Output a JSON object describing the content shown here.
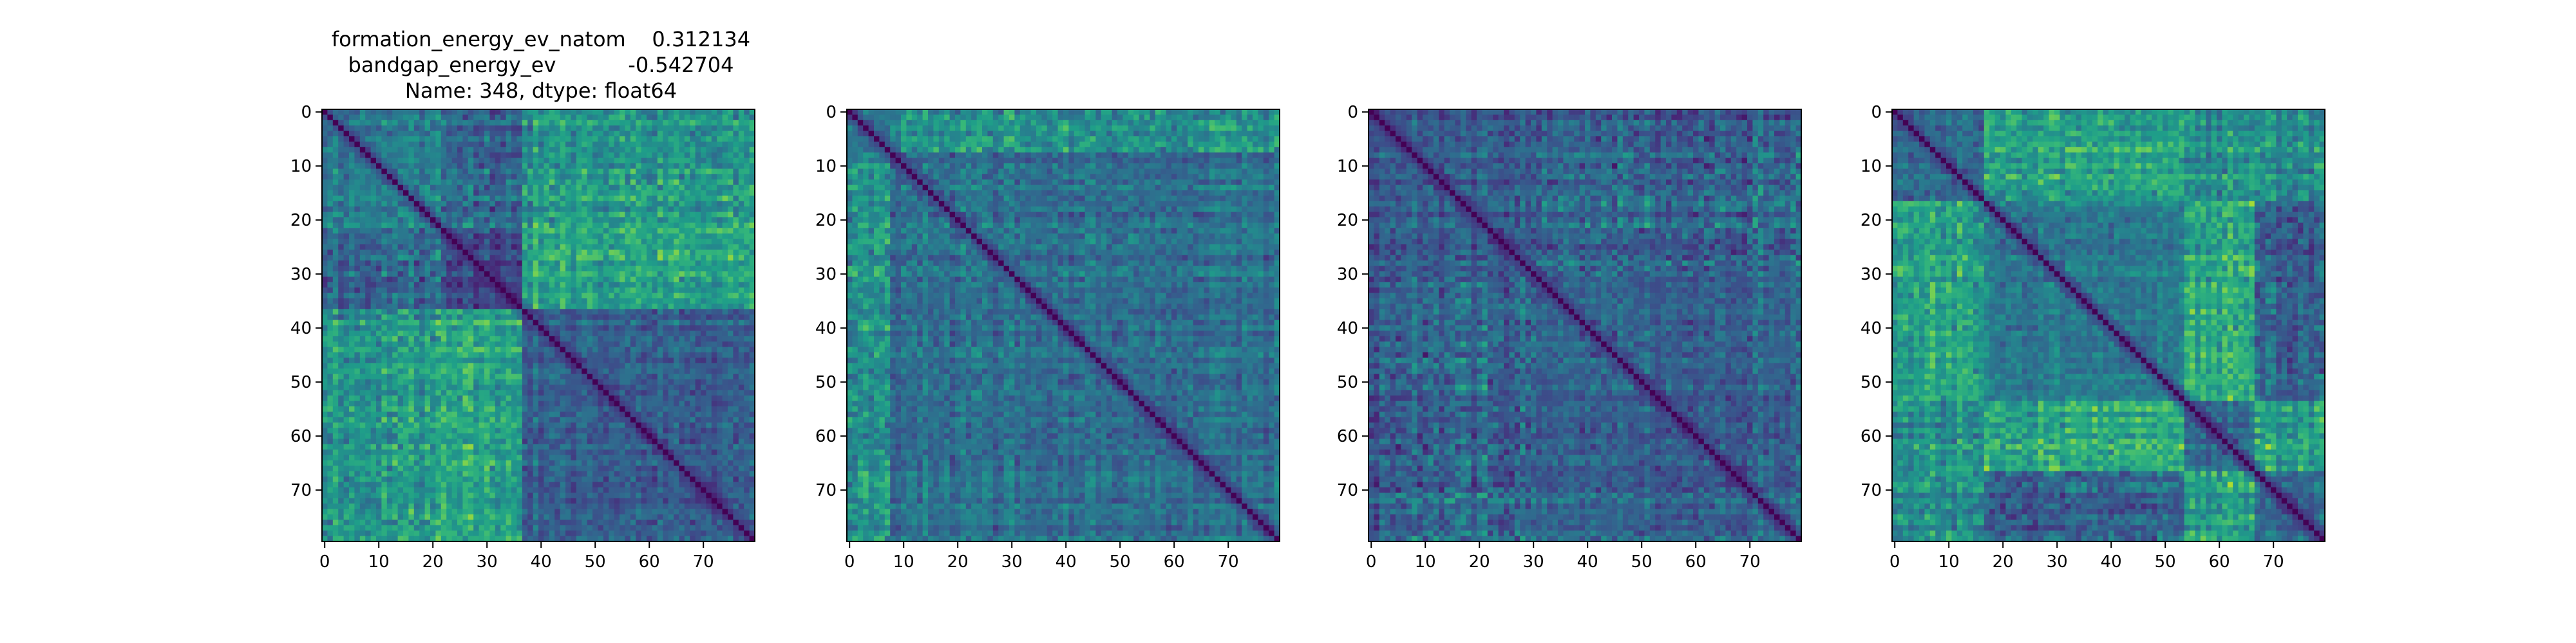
{
  "figure": {
    "title_lines": [
      "formation_energy_ev_natom    0.312134",
      "bandgap_energy_ev           -0.542704",
      "Name: 348, dtype: float64"
    ]
  },
  "chart_data": [
    {
      "type": "heatmap",
      "title": "",
      "size": 80,
      "colormap": "viridis",
      "diagonal_value": 0,
      "xlim": [
        -0.5,
        79.5
      ],
      "ylim": [
        79.5,
        -0.5
      ],
      "xticks": [
        0,
        10,
        20,
        30,
        40,
        50,
        60,
        70
      ],
      "yticks": [
        0,
        10,
        20,
        30,
        40,
        50,
        60,
        70
      ],
      "xtick_labels": [
        "0",
        "10",
        "20",
        "30",
        "40",
        "50",
        "60",
        "70"
      ],
      "ytick_labels": [
        "0",
        "10",
        "20",
        "30",
        "40",
        "50",
        "60",
        "70"
      ],
      "block_boundaries": [
        0,
        22,
        37,
        80
      ],
      "pattern_seed": 11
    },
    {
      "type": "heatmap",
      "title": "",
      "size": 80,
      "colormap": "viridis",
      "diagonal_value": 0,
      "xlim": [
        -0.5,
        79.5
      ],
      "ylim": [
        79.5,
        -0.5
      ],
      "xticks": [
        0,
        10,
        20,
        30,
        40,
        50,
        60,
        70
      ],
      "yticks": [
        0,
        10,
        20,
        30,
        40,
        50,
        60,
        70
      ],
      "xtick_labels": [
        "0",
        "10",
        "20",
        "30",
        "40",
        "50",
        "60",
        "70"
      ],
      "ytick_labels": [
        "0",
        "10",
        "20",
        "30",
        "40",
        "50",
        "60",
        "70"
      ],
      "block_boundaries": [
        0,
        8,
        80
      ],
      "pattern_seed": 29
    },
    {
      "type": "heatmap",
      "title": "",
      "size": 80,
      "colormap": "viridis",
      "diagonal_value": 0,
      "xlim": [
        -0.5,
        79.5
      ],
      "ylim": [
        79.5,
        -0.5
      ],
      "xticks": [
        0,
        10,
        20,
        30,
        40,
        50,
        60,
        70
      ],
      "yticks": [
        0,
        10,
        20,
        30,
        40,
        50,
        60,
        70
      ],
      "xtick_labels": [
        "0",
        "10",
        "20",
        "30",
        "40",
        "50",
        "60",
        "70"
      ],
      "ytick_labels": [
        "0",
        "10",
        "20",
        "30",
        "40",
        "50",
        "60",
        "70"
      ],
      "block_boundaries": [
        0,
        31,
        80
      ],
      "pattern_seed": 47
    },
    {
      "type": "heatmap",
      "title": "",
      "size": 80,
      "colormap": "viridis",
      "diagonal_value": 0,
      "xlim": [
        -0.5,
        79.5
      ],
      "ylim": [
        79.5,
        -0.5
      ],
      "xticks": [
        0,
        10,
        20,
        30,
        40,
        50,
        60,
        70
      ],
      "yticks": [
        0,
        10,
        20,
        30,
        40,
        50,
        60,
        70
      ],
      "xtick_labels": [
        "0",
        "10",
        "20",
        "30",
        "40",
        "50",
        "60",
        "70"
      ],
      "ytick_labels": [
        "0",
        "10",
        "20",
        "30",
        "40",
        "50",
        "60",
        "70"
      ],
      "block_boundaries": [
        0,
        17,
        54,
        67,
        80
      ],
      "pattern_seed": 83
    }
  ]
}
